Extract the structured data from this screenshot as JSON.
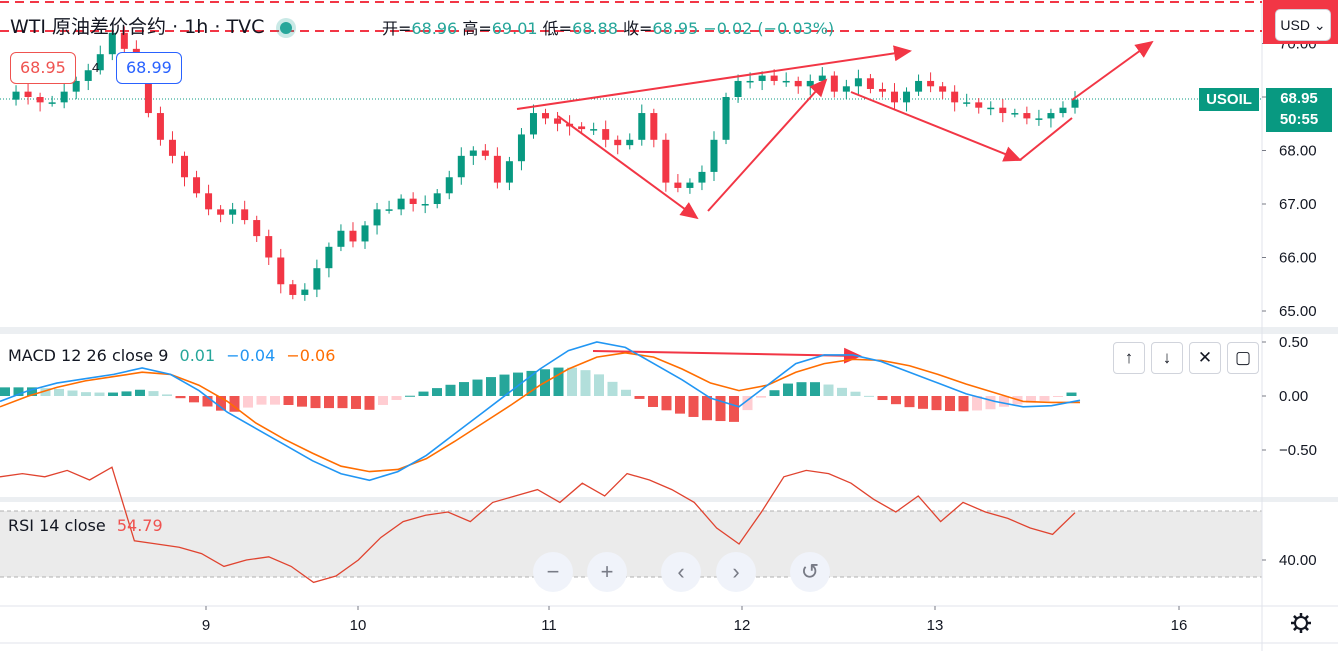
{
  "header": {
    "symbol": "WTI 原油差价合约",
    "separator": "·",
    "interval": "1h",
    "source": "TVC",
    "ohlc": {
      "open_label": "开=",
      "open": "68.96",
      "high_label": "高=",
      "high": "69.01",
      "low_label": "低=",
      "low": "68.88",
      "close_label": "收=",
      "close": "68.95",
      "change": "−0.02 (−0.03%)"
    }
  },
  "trade": {
    "sell": "68.95",
    "spread": "4",
    "buy": "68.99"
  },
  "currency": "USD",
  "currency_caret": "⌄",
  "price_axis": {
    "ticks": [
      "65.00",
      "66.00",
      "67.00",
      "68.00",
      "69.00",
      "70.00"
    ],
    "top_clip": "70.73",
    "symbol_label": "USOIL",
    "last_price": "68.95",
    "countdown": "50:55"
  },
  "time_axis": {
    "ticks": [
      "9",
      "10",
      "11",
      "12",
      "13",
      "16"
    ]
  },
  "macd": {
    "label": "MACD 12 26 close 9",
    "hist_value": "0.01",
    "macd_value": "−0.04",
    "signal_value": "−0.06",
    "ticks": [
      "0.50",
      "0.00",
      "−0.50"
    ],
    "buttons": [
      "↑",
      "↓",
      "✕",
      "▢"
    ]
  },
  "rsi": {
    "label": "RSI 14 close",
    "value": "54.79",
    "ticks": [
      "40.00"
    ]
  },
  "nav_buttons": [
    "−",
    "+",
    "‹",
    "›",
    "↺"
  ],
  "colors": {
    "up": "#089981",
    "down": "#f23645",
    "macd_line": "#2196f3",
    "signal_line": "#ff6d00",
    "rsi_line": "#e0432f",
    "annotation": "#f23645",
    "hist_up_strong": "#26a69a",
    "hist_up_weak": "#b2dfdb",
    "hist_down_strong": "#ef5350",
    "hist_down_weak": "#ffcdd2"
  },
  "chart_data": [
    {
      "type": "candlestick",
      "title": "WTI 原油差价合约 · 1h · TVC",
      "x_ticks": [
        "9",
        "10",
        "11",
        "12",
        "13",
        "16"
      ],
      "ylim": [
        64.7,
        70.73
      ],
      "close_path": [
        68.95,
        69.1,
        69.0,
        68.9,
        68.9,
        69.1,
        69.3,
        69.5,
        69.8,
        70.2,
        69.9,
        69.5,
        68.7,
        68.2,
        67.9,
        67.5,
        67.2,
        66.9,
        66.8,
        66.9,
        66.7,
        66.4,
        66.0,
        65.5,
        65.3,
        65.4,
        65.8,
        66.2,
        66.5,
        66.3,
        66.6,
        66.9,
        66.9,
        67.1,
        67.0,
        67.0,
        67.2,
        67.5,
        67.9,
        68.0,
        67.9,
        67.4,
        67.8,
        68.3,
        68.7,
        68.6,
        68.5,
        68.45,
        68.4,
        68.4,
        68.2,
        68.1,
        68.2,
        68.7,
        68.2,
        67.4,
        67.3,
        67.4,
        67.6,
        68.2,
        69.0,
        69.3,
        69.3,
        69.4,
        69.3,
        69.3,
        69.2,
        69.3,
        69.4,
        69.1,
        69.2,
        69.35,
        69.15,
        69.1,
        68.9,
        69.1,
        69.3,
        69.2,
        69.1,
        68.9,
        68.9,
        68.8,
        68.8,
        68.7,
        68.7,
        68.6,
        68.6,
        68.7,
        68.8,
        68.95
      ],
      "annotations": [
        "rising wedge line to 70.0",
        "V arrows 68.6→66.6→69.4",
        "arrow 69.2→67.8→70.3"
      ],
      "price_lines": [
        70.73,
        70.45,
        68.95
      ]
    },
    {
      "type": "bar",
      "name_label": "MACD 12 26 close 9",
      "ylim": [
        -0.85,
        0.55
      ],
      "macd": [
        -0.05,
        0.05,
        0.12,
        0.16,
        0.2,
        0.26,
        0.2,
        0.05,
        -0.15,
        -0.3,
        -0.45,
        -0.6,
        -0.72,
        -0.78,
        -0.7,
        -0.55,
        -0.35,
        -0.15,
        0.05,
        0.25,
        0.42,
        0.5,
        0.45,
        0.3,
        0.15,
        -0.02,
        -0.1,
        0.1,
        0.3,
        0.38,
        0.38,
        0.32,
        0.22,
        0.12,
        0.02,
        -0.05,
        -0.1,
        -0.09,
        -0.04
      ],
      "signal": [
        -0.1,
        0.0,
        0.08,
        0.14,
        0.18,
        0.22,
        0.2,
        0.1,
        -0.05,
        -0.25,
        -0.4,
        -0.53,
        -0.65,
        -0.7,
        -0.68,
        -0.58,
        -0.42,
        -0.25,
        -0.08,
        0.1,
        0.25,
        0.36,
        0.4,
        0.36,
        0.25,
        0.12,
        0.05,
        0.1,
        0.22,
        0.3,
        0.34,
        0.33,
        0.28,
        0.2,
        0.11,
        0.03,
        -0.05,
        -0.06,
        -0.06
      ],
      "last_values": {
        "histogram": 0.01,
        "macd": -0.04,
        "signal": -0.06
      }
    },
    {
      "type": "line",
      "name_label": "RSI 14 close",
      "ylim": [
        20,
        80
      ],
      "band": [
        30,
        70
      ],
      "values": [
        66,
        67,
        66,
        68,
        65,
        69,
        46,
        45,
        44,
        42,
        38,
        40,
        41,
        38,
        33,
        35,
        40,
        47,
        52,
        54,
        55,
        52,
        58,
        60,
        62,
        58,
        64,
        60,
        67,
        65,
        62,
        58,
        50,
        45,
        55,
        66,
        68,
        67,
        64,
        59,
        55,
        60,
        52,
        58,
        55,
        53,
        50,
        48,
        54.79
      ]
    }
  ]
}
